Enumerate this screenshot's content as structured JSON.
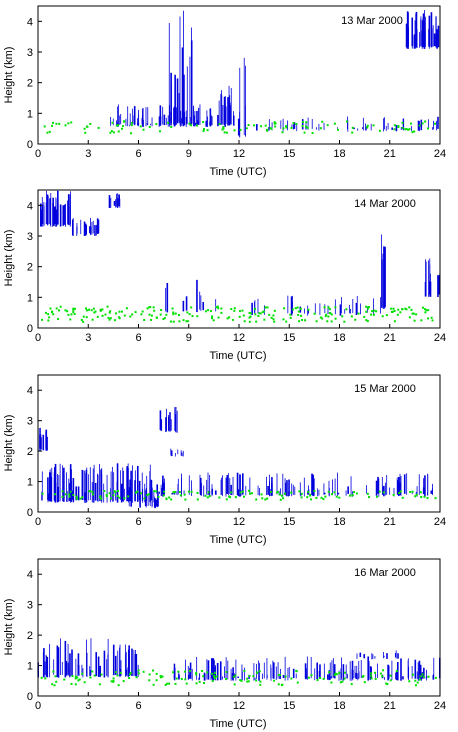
{
  "chart_data": [
    {
      "type": "scatter",
      "date_label": "13 Mar 2000",
      "xlabel": "Time (UTC)",
      "ylabel": "Height (km)",
      "xlim": [
        0,
        24
      ],
      "ylim": [
        0,
        4.5
      ],
      "x_ticks": [
        0,
        3,
        6,
        9,
        12,
        15,
        18,
        21,
        24
      ],
      "y_ticks": [
        0,
        1,
        2,
        3,
        4
      ],
      "colors": {
        "boundary_layer": "#00e000",
        "cloud": "#0000dd",
        "high_return": "#ff0000"
      },
      "cloud_events": [
        {
          "x": [
            4.0,
            11.9
          ],
          "base": 0.55,
          "top_min": 0.6,
          "top_max": 1.3,
          "density": 80
        },
        {
          "x": [
            7.8,
            9.2
          ],
          "base": 0.6,
          "top_min": 1.5,
          "top_max": 4.4,
          "density": 14
        },
        {
          "x": [
            10.8,
            11.6
          ],
          "base": 0.6,
          "top_min": 1.2,
          "top_max": 2.0,
          "density": 14
        },
        {
          "x": [
            11.9,
            12.4
          ],
          "base": 0.2,
          "top_min": 0.8,
          "top_max": 4.4,
          "density": 6
        },
        {
          "x": [
            13.0,
            24.0
          ],
          "base": 0.4,
          "top_min": 0.5,
          "top_max": 0.9,
          "density": 50
        },
        {
          "x": [
            22.0,
            24.0
          ],
          "base": 3.1,
          "top_min": 3.5,
          "top_max": 4.4,
          "density": 40
        }
      ],
      "boundary_layer": {
        "x": [
          0.2,
          23.8
        ],
        "base_height": 0.55,
        "spread": 0.2,
        "count": 110
      }
    },
    {
      "type": "scatter",
      "date_label": "14 Mar 2000",
      "xlabel": "Time (UTC)",
      "ylabel": "Height (km)",
      "xlim": [
        0,
        24
      ],
      "ylim": [
        0,
        4.5
      ],
      "x_ticks": [
        0,
        3,
        6,
        9,
        12,
        15,
        18,
        21,
        24
      ],
      "y_ticks": [
        0,
        1,
        2,
        3,
        4
      ],
      "colors": {
        "boundary_layer": "#00e000",
        "cloud": "#0000dd",
        "high_return": "#ff0000"
      },
      "cloud_events": [
        {
          "x": [
            0.0,
            2.0
          ],
          "base": 3.3,
          "top_min": 3.8,
          "top_max": 4.5,
          "density": 40
        },
        {
          "x": [
            2.0,
            3.8
          ],
          "base": 3.0,
          "top_min": 3.3,
          "top_max": 3.6,
          "density": 20
        },
        {
          "x": [
            4.0,
            4.9
          ],
          "base": 3.9,
          "top_min": 4.1,
          "top_max": 4.4,
          "density": 10
        },
        {
          "x": [
            7.3,
            10.8
          ],
          "base": 0.5,
          "top_min": 0.8,
          "top_max": 1.6,
          "density": 10
        },
        {
          "x": [
            12.0,
            20.5
          ],
          "base": 0.4,
          "top_min": 0.6,
          "top_max": 1.1,
          "density": 30
        },
        {
          "x": [
            20.4,
            20.8
          ],
          "base": 0.6,
          "top_min": 2.0,
          "top_max": 3.7,
          "density": 6
        },
        {
          "x": [
            23.0,
            24.0
          ],
          "base": 1.0,
          "top_min": 1.4,
          "top_max": 2.4,
          "density": 12
        }
      ],
      "boundary_layer": {
        "x": [
          0.2,
          23.8
        ],
        "base_height": 0.45,
        "spread": 0.25,
        "count": 220
      }
    },
    {
      "type": "scatter",
      "date_label": "15 Mar 2000",
      "xlabel": "Time (UTC)",
      "ylabel": "Height (km)",
      "xlim": [
        0,
        24
      ],
      "ylim": [
        0,
        4.5
      ],
      "x_ticks": [
        0,
        3,
        6,
        9,
        12,
        15,
        18,
        21,
        24
      ],
      "y_ticks": [
        0,
        1,
        2,
        3,
        4
      ],
      "colors": {
        "boundary_layer": "#00e000",
        "cloud": "#0000dd",
        "high_return": "#ff0000"
      },
      "cloud_events": [
        {
          "x": [
            0.0,
            0.6
          ],
          "base": 2.0,
          "top_min": 2.4,
          "top_max": 3.0,
          "density": 8
        },
        {
          "x": [
            0.2,
            7.0
          ],
          "base": 0.3,
          "top_min": 0.6,
          "top_max": 1.6,
          "density": 100
        },
        {
          "x": [
            5.4,
            7.2
          ],
          "base": 0.1,
          "top_min": 0.3,
          "top_max": 0.9,
          "density": 16
        },
        {
          "x": [
            7.2,
            8.4
          ],
          "base": 2.6,
          "top_min": 3.0,
          "top_max": 3.5,
          "density": 14
        },
        {
          "x": [
            7.9,
            8.7
          ],
          "base": 1.8,
          "top_min": 1.9,
          "top_max": 2.1,
          "density": 8
        },
        {
          "x": [
            7.0,
            24.0
          ],
          "base": 0.5,
          "top_min": 0.6,
          "top_max": 1.3,
          "density": 130
        }
      ],
      "boundary_layer": {
        "x": [
          0.2,
          23.8
        ],
        "base_height": 0.55,
        "spread": 0.15,
        "count": 130
      }
    },
    {
      "type": "scatter",
      "date_label": "16 Mar 2000",
      "xlabel": "Time (UTC)",
      "ylabel": "Height (km)",
      "xlim": [
        0,
        24
      ],
      "ylim": [
        0,
        4.5
      ],
      "x_ticks": [
        0,
        3,
        6,
        9,
        12,
        15,
        18,
        21,
        24
      ],
      "y_ticks": [
        0,
        1,
        2,
        3,
        4
      ],
      "colors": {
        "boundary_layer": "#00e000",
        "cloud": "#0000dd",
        "high_return": "#ff0000"
      },
      "cloud_events": [
        {
          "x": [
            0.0,
            6.0
          ],
          "base": 0.6,
          "top_min": 0.8,
          "top_max": 1.9,
          "density": 70
        },
        {
          "x": [
            8.0,
            24.0
          ],
          "base": 0.5,
          "top_min": 0.6,
          "top_max": 1.3,
          "density": 150
        },
        {
          "x": [
            19.0,
            21.5
          ],
          "base": 1.2,
          "top_min": 1.3,
          "top_max": 1.5,
          "density": 12
        }
      ],
      "boundary_layer": {
        "x": [
          0.2,
          23.8
        ],
        "base_height": 0.6,
        "spread": 0.25,
        "count": 150
      }
    }
  ]
}
